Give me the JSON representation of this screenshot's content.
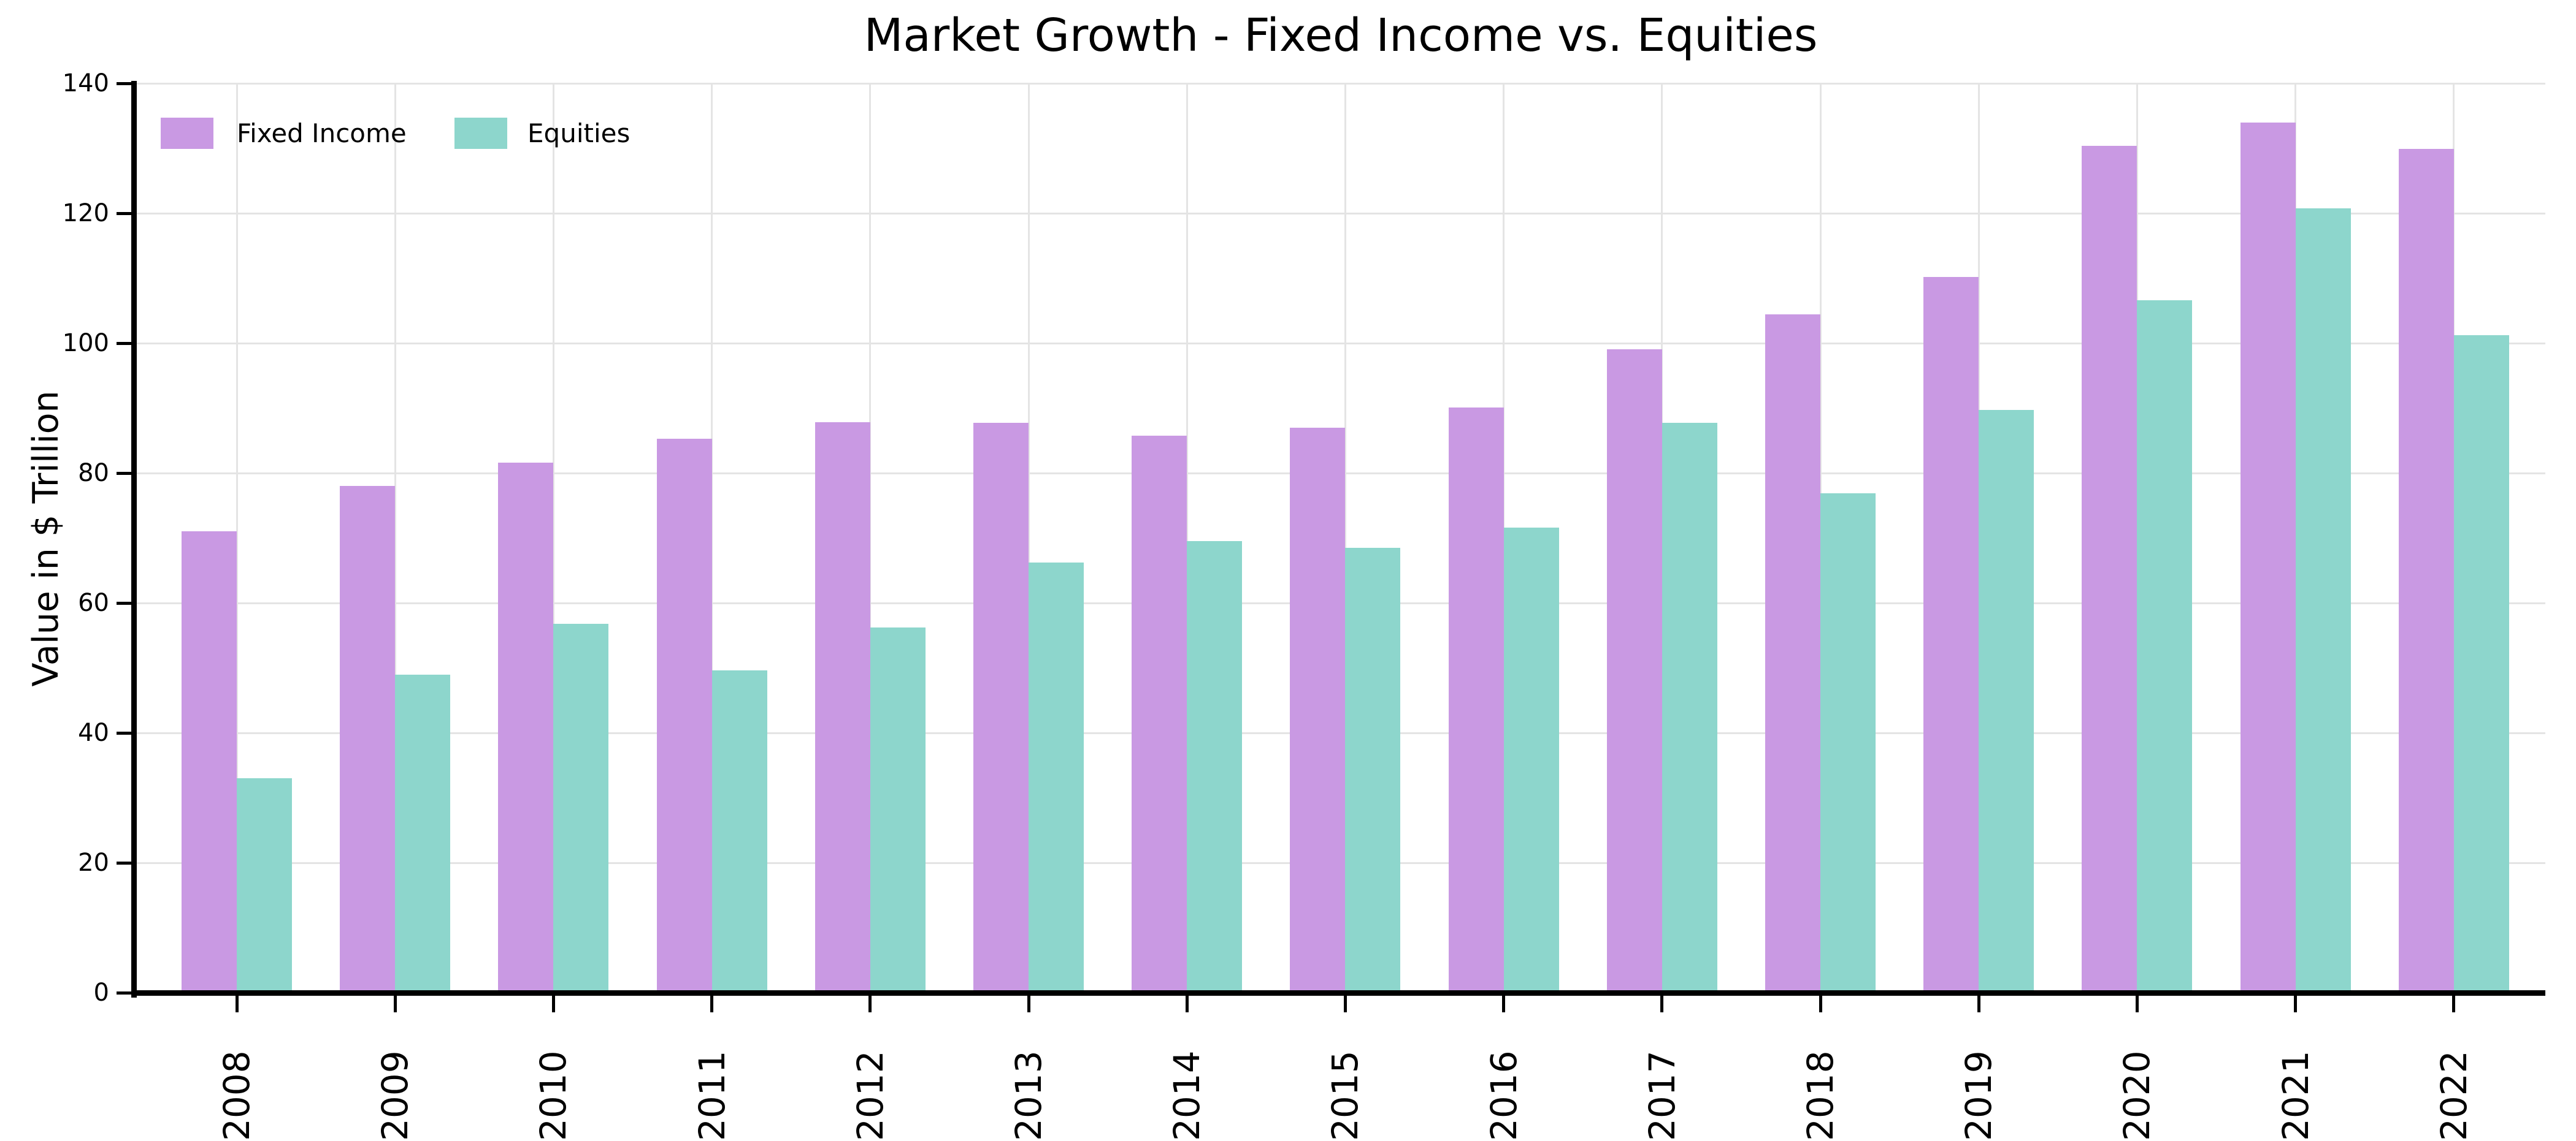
{
  "chart": {
    "title": "Market Growth - Fixed Income vs. Equities",
    "ylabel": "Value in $ Trillion",
    "xlabel": ""
  },
  "legend": {
    "items": [
      {
        "label": "Fixed Income",
        "color": "#C999E3"
      },
      {
        "label": "Equities",
        "color": "#8DD6CC"
      }
    ]
  },
  "colors": {
    "background": "#FFFFFF",
    "grid": "#E4E4E4",
    "spine": "#000000",
    "text": "#000000",
    "fixed_income": "#C999E3",
    "equities": "#8DD6CC"
  },
  "chart_data": {
    "type": "bar",
    "title": "Market Growth - Fixed Income vs. Equities",
    "xlabel": "",
    "ylabel": "Value in $ Trillion",
    "categories": [
      "2008",
      "2009",
      "2010",
      "2011",
      "2012",
      "2013",
      "2014",
      "2015",
      "2016",
      "2017",
      "2018",
      "2019",
      "2020",
      "2021",
      "2022"
    ],
    "series": [
      {
        "name": "Fixed Income",
        "color": "#C999E3",
        "values": [
          71.0,
          78.0,
          81.6,
          85.3,
          87.8,
          87.7,
          85.8,
          87.0,
          90.1,
          99.1,
          104.4,
          110.2,
          130.4,
          134.0,
          129.9
        ]
      },
      {
        "name": "Equities",
        "color": "#8DD6CC",
        "values": [
          33.0,
          49.0,
          56.8,
          49.6,
          56.2,
          66.2,
          69.5,
          68.5,
          71.6,
          87.7,
          76.9,
          89.7,
          106.6,
          120.8,
          101.2
        ]
      }
    ],
    "ylim": [
      0,
      140
    ],
    "yticks": [
      0,
      20,
      40,
      60,
      80,
      100,
      120,
      140
    ],
    "grid": true,
    "xtick_rotation": 90,
    "legend_position": "upper left"
  }
}
